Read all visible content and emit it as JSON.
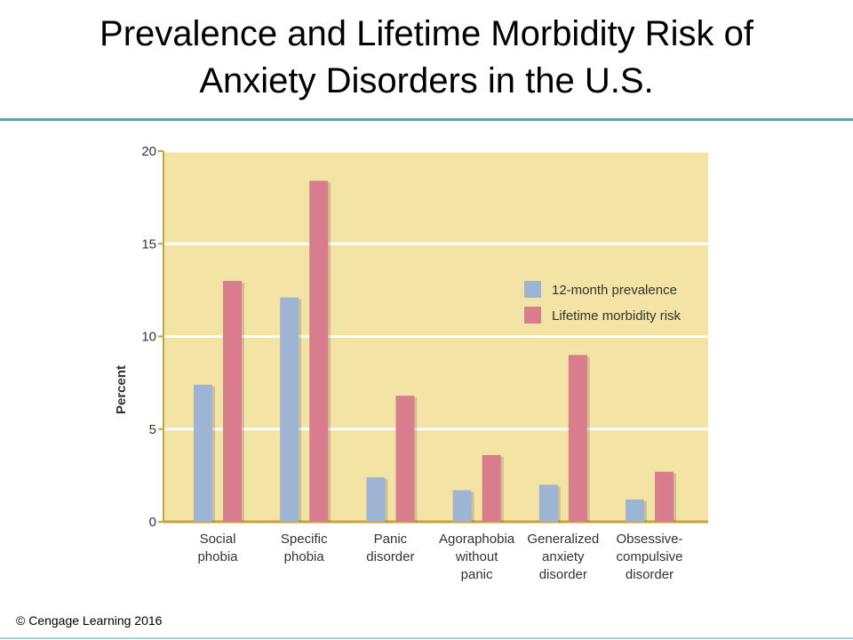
{
  "slide": {
    "title_line1": "Prevalence and Lifetime Morbidity Risk of",
    "title_line2": "Anxiety Disorders in the U.S.",
    "footer": "© Cengage Learning 2016"
  },
  "colors": {
    "plot_background": "#f3e3a5",
    "gridline": "#ffffff",
    "series_12_month": "#9eb4d5",
    "series_lifetime": "#d87c8e",
    "axis": "#c8a23b",
    "title_rule": "#5fa3a6"
  },
  "chart_data": {
    "type": "bar",
    "ylabel": "Percent",
    "xlabel": "",
    "ylim": [
      0,
      20
    ],
    "yticks": [
      0,
      5,
      10,
      15,
      20
    ],
    "grid": true,
    "legend_position": "right",
    "categories": [
      [
        "Social",
        "phobia"
      ],
      [
        "Specific",
        "phobia"
      ],
      [
        "Panic",
        "disorder"
      ],
      [
        "Agoraphobia",
        "without",
        "panic"
      ],
      [
        "Generalized",
        "anxiety",
        "disorder"
      ],
      [
        "Obsessive-",
        "compulsive",
        "disorder"
      ]
    ],
    "series": [
      {
        "name": "12-month prevalence",
        "values": [
          7.4,
          12.1,
          2.4,
          1.7,
          2.0,
          1.2
        ]
      },
      {
        "name": "Lifetime morbidity risk",
        "values": [
          13.0,
          18.4,
          6.8,
          3.6,
          9.0,
          2.7
        ]
      }
    ]
  }
}
